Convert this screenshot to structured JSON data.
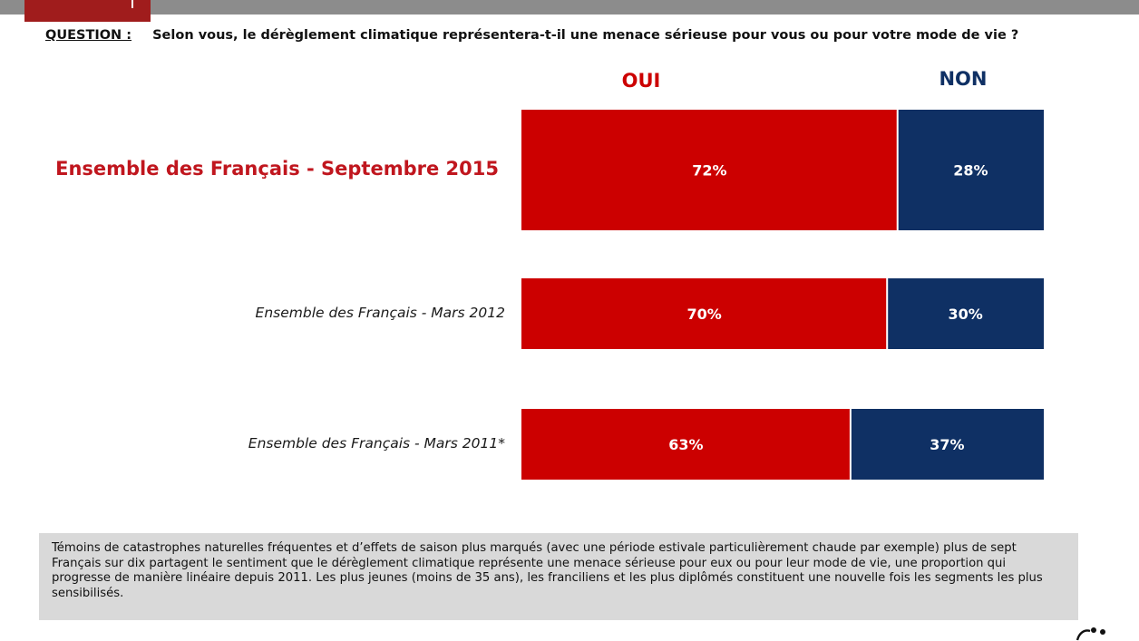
{
  "header": {
    "tab_color": "#a01c1c",
    "bar_color": "#8c8c8c"
  },
  "question": {
    "label": "QUESTION :",
    "text": "Selon vous, le dérèglement climatique représentera-t-il une menace sérieuse pour vous ou pour votre mode de vie ?"
  },
  "chart_data": {
    "type": "bar",
    "orientation": "horizontal",
    "stacked": true,
    "percent": true,
    "title": "",
    "xlabel": "",
    "ylabel": "",
    "xlim": [
      0,
      100
    ],
    "grid": false,
    "legend_position": "top",
    "categories": [
      "Ensemble des Français - Septembre 2015",
      "Ensemble des Français - Mars  2012",
      "Ensemble des Français - Mars 2011*"
    ],
    "series": [
      {
        "name": "OUI",
        "color": "#cc0000",
        "values": [
          72,
          70,
          63
        ],
        "labels": [
          "72%",
          "70%",
          "63%"
        ]
      },
      {
        "name": "NON",
        "color": "#0f3064",
        "values": [
          28,
          30,
          37
        ],
        "labels": [
          "28%",
          "30%",
          "37%"
        ]
      }
    ]
  },
  "note": {
    "text": "Témoins de catastrophes naturelles fréquentes et d’effets de saison plus marqués (avec une période estivale particulièrement chaude par exemple) plus de sept Français sur dix partagent le sentiment que le dérèglement climatique représente une menace sérieuse pour eux ou pour leur mode de vie, une proportion qui progresse de manière linéaire depuis 2011. Les plus jeunes (moins de 35 ans), les franciliens et les plus diplômés constituent une nouvelle fois les segments les plus sensibilisés."
  }
}
